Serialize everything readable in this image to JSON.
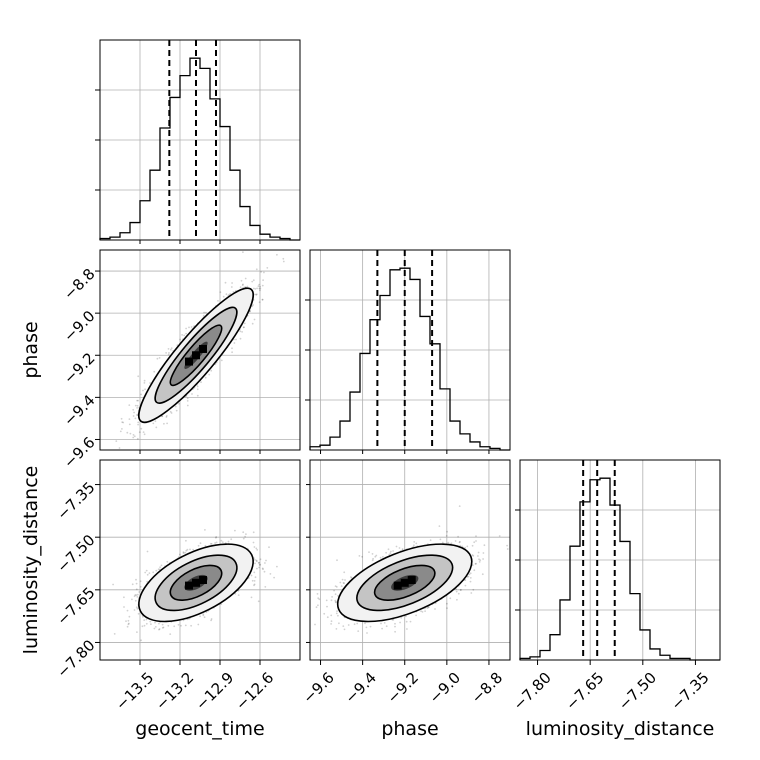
{
  "chart_data": {
    "type": "corner",
    "parameters": [
      "geocent_time",
      "phase",
      "luminosity_distance"
    ],
    "ranges": {
      "geocent_time": [
        -13.8,
        -12.3
      ],
      "phase": [
        -9.65,
        -8.7
      ],
      "luminosity_distance": [
        -7.85,
        -7.28
      ]
    },
    "ticks": {
      "geocent_time": {
        "values": [
          -13.5,
          -13.2,
          -12.9,
          -12.6
        ],
        "labels": [
          "−13.5",
          "−13.2",
          "−12.9",
          "−12.6"
        ]
      },
      "phase": {
        "values": [
          -9.6,
          -9.4,
          -9.2,
          -9.0,
          -8.8
        ],
        "labels": [
          "−9.6",
          "−9.4",
          "−9.2",
          "−9.0",
          "−8.8"
        ]
      },
      "luminosity_distance": {
        "values": [
          -7.8,
          -7.65,
          -7.5,
          -7.35
        ],
        "labels": [
          "−7.80",
          "−7.65",
          "−7.50",
          "−7.35"
        ]
      }
    },
    "histograms": {
      "geocent_time": {
        "bin_edges": [
          -13.8,
          -13.725,
          -13.65,
          -13.575,
          -13.5,
          -13.425,
          -13.35,
          -13.275,
          -13.2,
          -13.125,
          -13.05,
          -12.975,
          -12.9,
          -12.825,
          -12.75,
          -12.675,
          -12.6,
          -12.525,
          -12.45,
          -12.375,
          -12.3
        ],
        "counts": [
          1,
          2,
          5,
          12,
          27,
          48,
          77,
          98,
          113,
          125,
          118,
          97,
          78,
          48,
          23,
          10,
          4,
          2,
          1,
          0
        ],
        "quantiles": [
          -13.28,
          -13.08,
          -12.93
        ]
      },
      "phase": {
        "bin_edges": [
          -9.65,
          -9.6025,
          -9.555,
          -9.5075,
          -9.46,
          -9.4125,
          -9.365,
          -9.3175,
          -9.27,
          -9.2225,
          -9.175,
          -9.1275,
          -9.08,
          -9.0325,
          -8.985,
          -8.9375,
          -8.89,
          -8.8425,
          -8.795,
          -8.7475,
          -8.7
        ],
        "counts": [
          2,
          3,
          8,
          18,
          36,
          60,
          81,
          96,
          112,
          113,
          106,
          83,
          66,
          38,
          18,
          10,
          5,
          2,
          1,
          0
        ],
        "quantiles": [
          -9.33,
          -9.2,
          -9.07
        ]
      },
      "luminosity_distance": {
        "bin_edges": [
          -7.85,
          -7.8215,
          -7.793,
          -7.7645,
          -7.736,
          -7.7075,
          -7.679,
          -7.6505,
          -7.622,
          -7.5935,
          -7.565,
          -7.5365,
          -7.508,
          -7.4795,
          -7.451,
          -7.4225,
          -7.394,
          -7.3655,
          -7.337,
          -7.3085,
          -7.28
        ],
        "counts": [
          1,
          2,
          6,
          16,
          38,
          72,
          100,
          114,
          115,
          98,
          75,
          42,
          19,
          7,
          3,
          1,
          1,
          0,
          0,
          0
        ],
        "quantiles": [
          -7.67,
          -7.63,
          -7.58
        ]
      }
    },
    "contour_pairs": [
      {
        "x": "geocent_time",
        "y": "phase"
      },
      {
        "x": "geocent_time",
        "y": "luminosity_distance"
      },
      {
        "x": "phase",
        "y": "luminosity_distance"
      }
    ],
    "grid": true
  }
}
